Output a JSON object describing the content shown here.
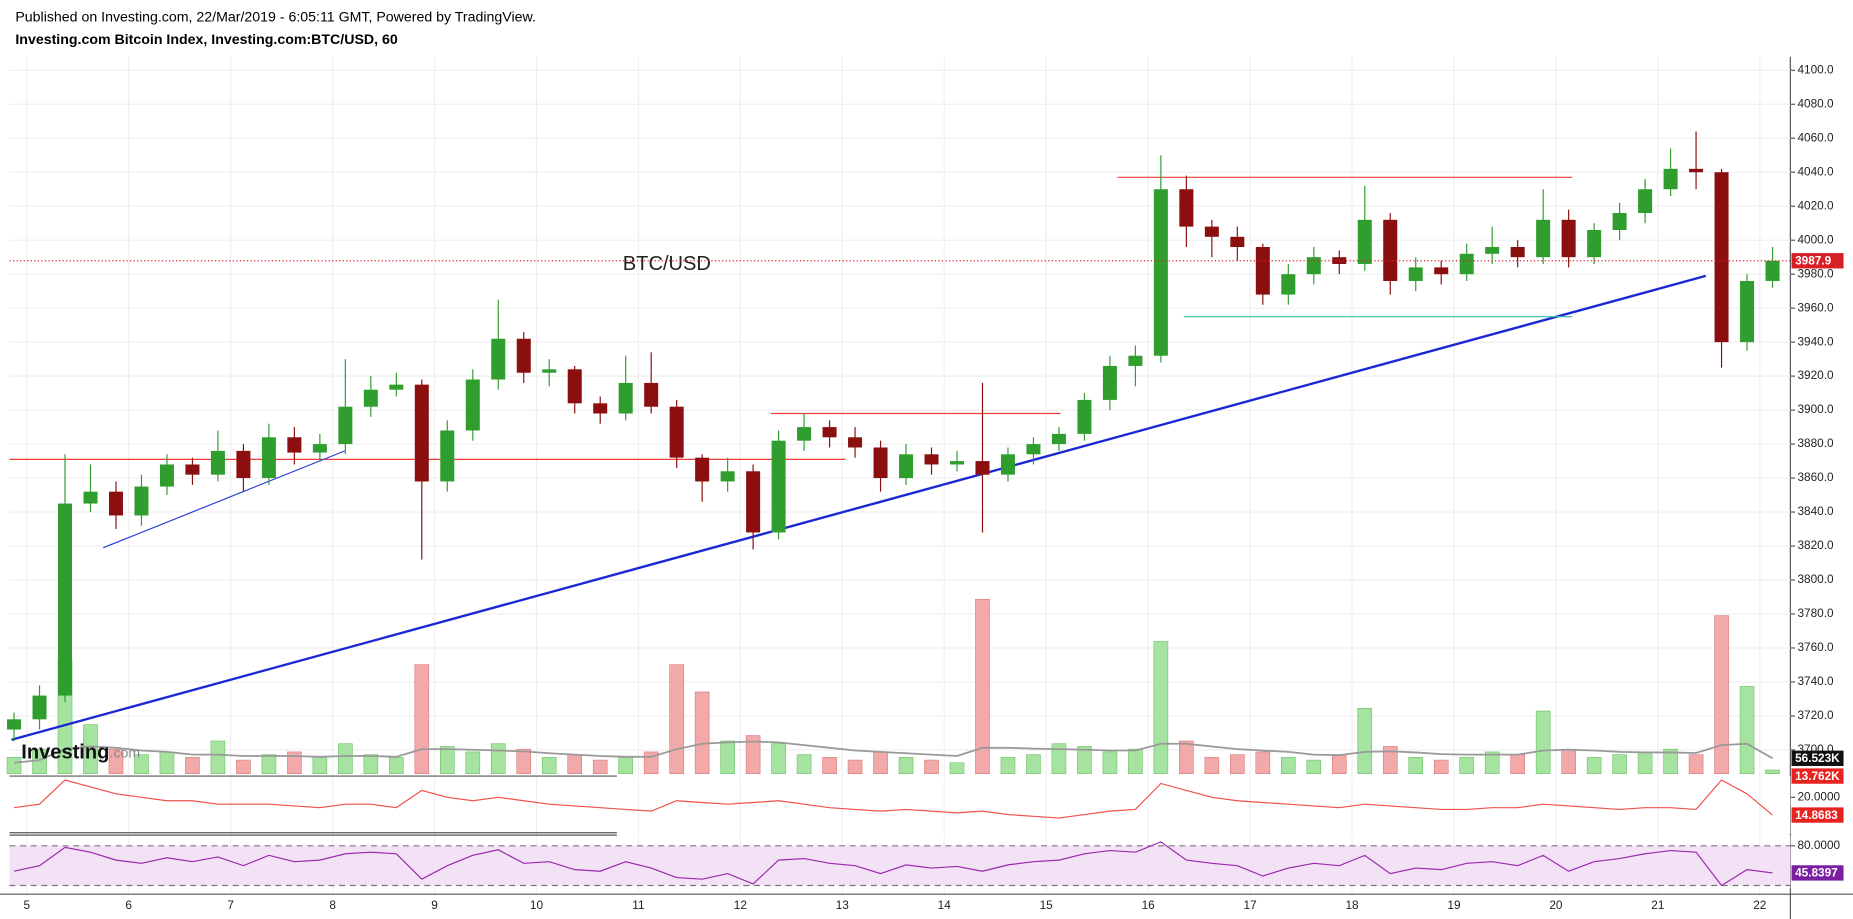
{
  "header": {
    "line1": "Published on Investing.com, 22/Mar/2019 - 6:05:11 GMT, Powered by TradingView.",
    "line2": "Investing.com Bitcoin Index, Investing.com:BTC/USD, 60"
  },
  "logo": {
    "text": "Investing",
    "suffix": ".com"
  },
  "chart_data": [
    {
      "type": "candlestick",
      "annotation": "BTC/USD",
      "x": [
        4.875,
        5.125,
        5.375,
        5.625,
        5.875,
        6.125,
        6.375,
        6.625,
        6.875,
        7.125,
        7.375,
        7.625,
        7.875,
        8.125,
        8.375,
        8.625,
        8.875,
        9.125,
        9.375,
        9.625,
        9.875,
        10.125,
        10.375,
        10.625,
        10.875,
        11.125,
        11.375,
        11.625,
        11.875,
        12.125,
        12.375,
        12.625,
        12.875,
        13.125,
        13.375,
        13.625,
        13.875,
        14.125,
        14.375,
        14.625,
        14.875,
        15.125,
        15.375,
        15.625,
        15.875,
        16.125,
        16.375,
        16.625,
        16.875,
        17.125,
        17.375,
        17.625,
        17.875,
        18.125,
        18.375,
        18.625,
        18.875,
        19.125,
        19.375,
        19.625,
        19.875,
        20.125,
        20.375,
        20.625,
        20.875,
        21.125,
        21.375,
        21.625,
        21.875,
        22.125
      ],
      "open": [
        3712,
        3718,
        3732,
        3845,
        3852,
        3838,
        3855,
        3868,
        3862,
        3876,
        3860,
        3884,
        3875,
        3880,
        3902,
        3912,
        3915,
        3858,
        3888,
        3918,
        3942,
        3922,
        3924,
        3904,
        3898,
        3916,
        3902,
        3872,
        3858,
        3864,
        3828,
        3882,
        3890,
        3884,
        3878,
        3860,
        3874,
        3868,
        3870,
        3862,
        3874,
        3880,
        3886,
        3906,
        3926,
        3932,
        4030,
        4008,
        4002,
        3996,
        3968,
        3980,
        3990,
        3986,
        4012,
        3976,
        3984,
        3980,
        3992,
        3996,
        3990,
        4012,
        3990,
        4006,
        4016,
        4030,
        4042,
        4040,
        3940,
        3976
      ],
      "high": [
        3722,
        3738,
        3874,
        3868,
        3858,
        3862,
        3874,
        3872,
        3888,
        3880,
        3892,
        3890,
        3886,
        3930,
        3920,
        3922,
        3918,
        3894,
        3924,
        3965,
        3946,
        3930,
        3926,
        3908,
        3932,
        3934,
        3906,
        3874,
        3872,
        3868,
        3888,
        3898,
        3894,
        3890,
        3882,
        3880,
        3878,
        3876,
        3916,
        3878,
        3884,
        3890,
        3910,
        3932,
        3938,
        4050,
        4038,
        4012,
        4008,
        3998,
        3986,
        3996,
        3994,
        4032,
        4016,
        3990,
        3988,
        3998,
        4008,
        4000,
        4030,
        4018,
        4010,
        4022,
        4036,
        4054,
        4064,
        4042,
        3980,
        3996
      ],
      "low": [
        3705,
        3712,
        3728,
        3840,
        3830,
        3832,
        3850,
        3856,
        3858,
        3852,
        3856,
        3868,
        3870,
        3874,
        3896,
        3908,
        3812,
        3852,
        3882,
        3912,
        3916,
        3914,
        3898,
        3892,
        3894,
        3898,
        3866,
        3846,
        3852,
        3818,
        3824,
        3876,
        3878,
        3872,
        3852,
        3856,
        3862,
        3864,
        3828,
        3858,
        3868,
        3876,
        3882,
        3900,
        3914,
        3928,
        3996,
        3990,
        3988,
        3962,
        3962,
        3974,
        3980,
        3982,
        3968,
        3970,
        3974,
        3976,
        3986,
        3984,
        3986,
        3984,
        3986,
        4000,
        4010,
        4026,
        4030,
        3925,
        3935,
        3972
      ],
      "close": [
        3718,
        3732,
        3845,
        3852,
        3838,
        3855,
        3868,
        3862,
        3876,
        3860,
        3884,
        3875,
        3880,
        3902,
        3912,
        3915,
        3858,
        3888,
        3918,
        3942,
        3922,
        3924,
        3904,
        3898,
        3916,
        3902,
        3872,
        3858,
        3864,
        3828,
        3882,
        3890,
        3884,
        3878,
        3860,
        3874,
        3868,
        3870,
        3862,
        3874,
        3880,
        3886,
        3906,
        3926,
        3932,
        4030,
        4008,
        4002,
        3996,
        3968,
        3980,
        3990,
        3986,
        4012,
        3976,
        3984,
        3980,
        3992,
        3996,
        3990,
        4012,
        3990,
        4006,
        4016,
        4030,
        4042,
        4040,
        3940,
        3976,
        3987.9
      ],
      "volume": [
        60000,
        90000,
        420000,
        180000,
        90000,
        70000,
        80000,
        60000,
        120000,
        50000,
        70000,
        80000,
        60000,
        110000,
        70000,
        60000,
        400000,
        100000,
        80000,
        110000,
        90000,
        60000,
        70000,
        50000,
        60000,
        80000,
        400000,
        300000,
        120000,
        140000,
        110000,
        70000,
        60000,
        50000,
        80000,
        60000,
        50000,
        40000,
        640000,
        60000,
        70000,
        110000,
        100000,
        80000,
        90000,
        485000,
        120000,
        60000,
        70000,
        80000,
        60000,
        50000,
        70000,
        240000,
        100000,
        60000,
        50000,
        60000,
        80000,
        70000,
        230000,
        90000,
        60000,
        70000,
        80000,
        90000,
        70000,
        580000,
        320000,
        13762
      ],
      "volume_last_label": "13.762K",
      "volume_ma": [
        40000,
        50000,
        90000,
        100000,
        95000,
        85000,
        80000,
        70000,
        70000,
        65000,
        65000,
        65000,
        62000,
        65000,
        65000,
        62000,
        90000,
        90000,
        88000,
        85000,
        82000,
        75000,
        70000,
        65000,
        62000,
        62000,
        90000,
        110000,
        115000,
        118000,
        115000,
        105000,
        95000,
        85000,
        80000,
        75000,
        70000,
        65000,
        95000,
        95000,
        92000,
        90000,
        88000,
        85000,
        85000,
        110000,
        110000,
        100000,
        90000,
        85000,
        80000,
        70000,
        68000,
        80000,
        82000,
        78000,
        72000,
        70000,
        70000,
        70000,
        85000,
        88000,
        85000,
        80000,
        78000,
        78000,
        76000,
        105000,
        110000,
        56523
      ],
      "volume_ma_last_label": "56.523K",
      "volume_ylim": [
        0,
        650000
      ],
      "up_color": "#2f9e2f",
      "down_color": "#8b0f0f",
      "volume_up_color": "#a6e3a0",
      "volume_down_color": "#f2a9a9",
      "volume_ma_color": "#999999",
      "last_price_color": "#d81f26",
      "xlim": [
        4.83,
        22.3
      ],
      "xticks": [
        5,
        6,
        7,
        8,
        9,
        10,
        11,
        12,
        13,
        14,
        15,
        16,
        17,
        18,
        19,
        20,
        21,
        22
      ],
      "ylim": [
        3686,
        4108
      ],
      "yticks": [
        {
          "value": 3700,
          "label": "3700.0"
        },
        {
          "value": 3720,
          "label": "3720.0"
        },
        {
          "value": 3740,
          "label": "3740.0"
        },
        {
          "value": 3760,
          "label": "3760.0"
        },
        {
          "value": 3780,
          "label": "3780.0"
        },
        {
          "value": 3800,
          "label": "3800.0"
        },
        {
          "value": 3820,
          "label": "3820.0"
        },
        {
          "value": 3840,
          "label": "3840.0"
        },
        {
          "value": 3860,
          "label": "3860.0"
        },
        {
          "value": 3880,
          "label": "3880.0"
        },
        {
          "value": 3900,
          "label": "3900.0"
        },
        {
          "value": 3920,
          "label": "3920.0"
        },
        {
          "value": 3940,
          "label": "3940.0"
        },
        {
          "value": 3960,
          "label": "3960.0"
        },
        {
          "value": 3980,
          "label": "3980.0"
        },
        {
          "value": 4000,
          "label": "4000.0"
        },
        {
          "value": 4020,
          "label": "4020.0"
        },
        {
          "value": 4040,
          "label": "4040.0"
        },
        {
          "value": 4060,
          "label": "4060.0"
        },
        {
          "value": 4080,
          "label": "4080.0"
        },
        {
          "value": 4100,
          "label": "4100.0"
        }
      ],
      "grid": true,
      "trendlines": [
        {
          "x": [
            4.83,
            13.03
          ],
          "y": [
            3871,
            3871
          ],
          "color": "#f03c3c",
          "width": 1
        },
        {
          "x": [
            5.75,
            8.12
          ],
          "y": [
            3819,
            3876
          ],
          "color": "#2c3fd6",
          "width": 1
        },
        {
          "x": [
            4.85,
            21.47
          ],
          "y": [
            3706,
            3979
          ],
          "color": "#1a28d4",
          "width": 2
        },
        {
          "x": [
            12.3,
            15.14
          ],
          "y": [
            3898,
            3898
          ],
          "color": "#f03c3c",
          "width": 1
        },
        {
          "x": [
            15.7,
            20.16
          ],
          "y": [
            4037,
            4037
          ],
          "color": "#f03c3c",
          "width": 1
        },
        {
          "x": [
            16.35,
            20.16
          ],
          "y": [
            3955,
            3955
          ],
          "color": "#3cc0a0",
          "width": 1
        }
      ]
    },
    {
      "type": "line",
      "values": [
        17,
        18,
        25,
        23,
        21,
        20,
        19,
        19,
        18,
        18,
        18,
        17.5,
        17,
        18,
        18,
        17,
        22,
        20,
        19,
        20,
        19,
        18,
        17.5,
        17,
        16.5,
        16,
        19,
        18.5,
        18,
        18.5,
        19,
        18,
        17,
        16.5,
        16,
        16.5,
        16,
        15.5,
        16,
        15,
        14.5,
        14,
        15,
        16,
        16.5,
        24,
        22,
        20,
        19,
        18.5,
        18,
        17.5,
        17,
        18,
        17.5,
        17,
        16.5,
        16.5,
        17,
        17,
        18,
        17.5,
        17,
        16.5,
        17,
        17,
        16.5,
        25,
        21,
        14.8683
      ],
      "color": "#f0504a",
      "label_color": "#e8231f",
      "ylim": [
        9.4,
        25.8
      ],
      "yticks": [
        {
          "value": 20,
          "label": "20.0000"
        }
      ]
    },
    {
      "type": "line",
      "values": [
        48,
        55,
        78,
        72,
        62,
        58,
        65,
        60,
        66,
        55,
        68,
        60,
        62,
        70,
        72,
        70,
        38,
        55,
        68,
        75,
        58,
        60,
        50,
        48,
        60,
        52,
        40,
        38,
        45,
        32,
        62,
        64,
        58,
        55,
        45,
        56,
        52,
        54,
        48,
        56,
        60,
        62,
        70,
        74,
        72,
        85,
        62,
        58,
        55,
        42,
        52,
        58,
        55,
        68,
        45,
        52,
        50,
        58,
        60,
        55,
        68,
        48,
        60,
        64,
        70,
        74,
        72,
        30,
        50,
        45.8397
      ],
      "color": "#9c27b0",
      "label_color": "#7b1fa2",
      "band": [
        30,
        80
      ],
      "band_color": "#f3e1f5",
      "ylim": [
        26.5,
        92
      ],
      "yticks": [
        {
          "value": 80,
          "label": "80.0000"
        }
      ]
    }
  ]
}
